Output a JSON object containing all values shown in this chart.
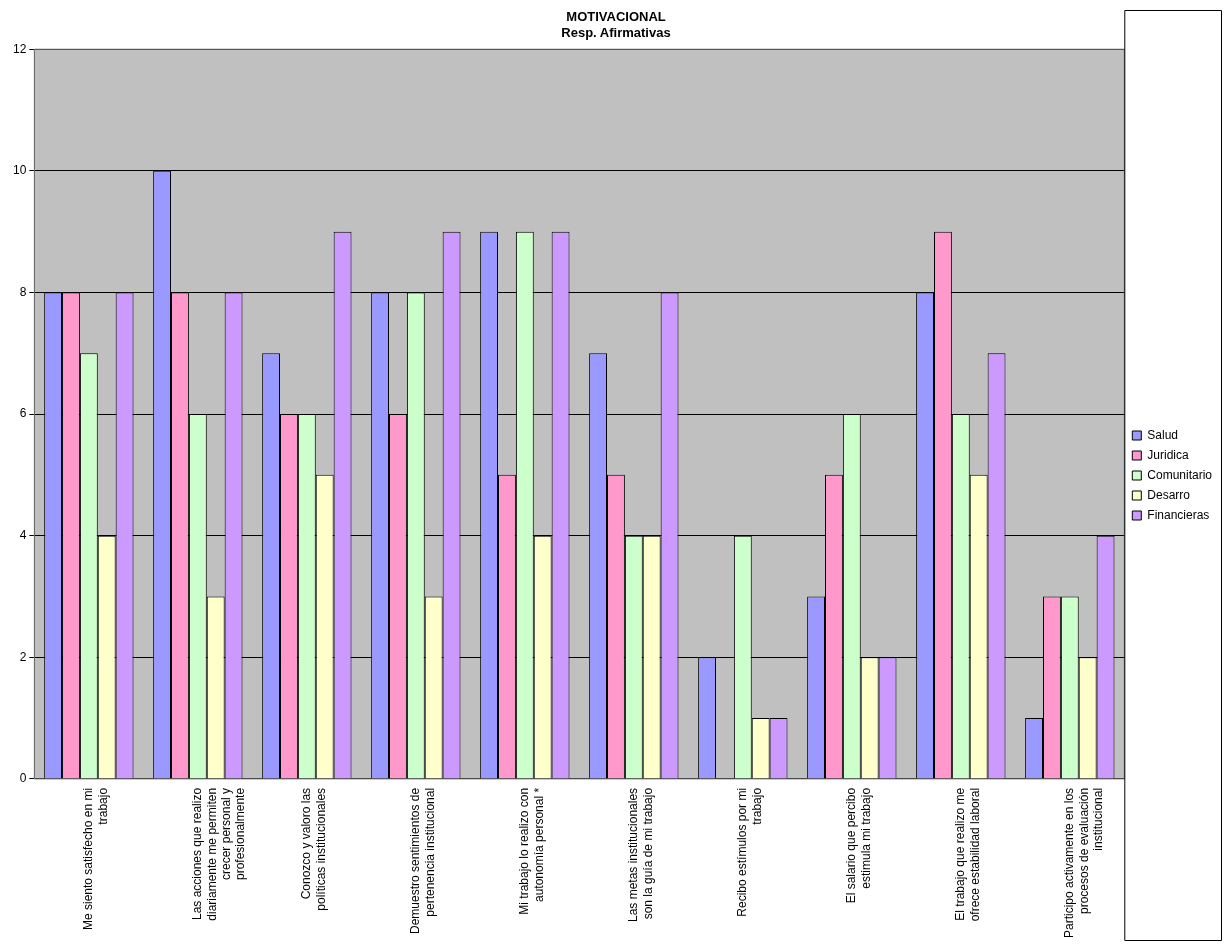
{
  "chart_data": {
    "type": "bar",
    "title": "MOTIVACIONAL",
    "subtitle": "Resp. Afirmativas",
    "categories": [
      "Me siento satisfecho en mi trabajo",
      "Las acciones que realizo diariamente me permiten crecer personal y profesionalmente",
      "Conozco y valoro las políticas institucionales",
      "Demuestro sentimientos de pertenencia institucional",
      "Mi trabajo lo realizo con autonomía personal *",
      "Las metas institucionales son la guía de mi trabajo",
      "Recibo estímulos por mi trabajo",
      "El salario que percibo estimula mi trabajo",
      "El trabajo que realizo me ofrece estabilidad laboral",
      "Participo activamente en los procesos de evaluación institucional"
    ],
    "series": [
      {
        "name": "Salud",
        "color": "#9999ff",
        "values": [
          8,
          10,
          7,
          8,
          9,
          7,
          2,
          3,
          8,
          1
        ]
      },
      {
        "name": "Juridica",
        "color": "#ff99cc",
        "values": [
          8,
          8,
          6,
          6,
          5,
          5,
          0,
          5,
          9,
          3
        ]
      },
      {
        "name": "Comunitario",
        "color": "#ccffcc",
        "values": [
          7,
          6,
          6,
          8,
          9,
          4,
          4,
          6,
          6,
          3
        ]
      },
      {
        "name": "Desarro",
        "color": "#ffffcc",
        "values": [
          4,
          3,
          5,
          3,
          4,
          4,
          1,
          2,
          5,
          2
        ]
      },
      {
        "name": "Financieras",
        "color": "#cc99ff",
        "values": [
          8,
          8,
          9,
          9,
          9,
          8,
          1,
          2,
          7,
          4
        ]
      }
    ],
    "ylim": [
      0,
      12
    ],
    "yticks": [
      0,
      2,
      4,
      6,
      8,
      10,
      12
    ],
    "grid": "y",
    "legend": "right"
  }
}
